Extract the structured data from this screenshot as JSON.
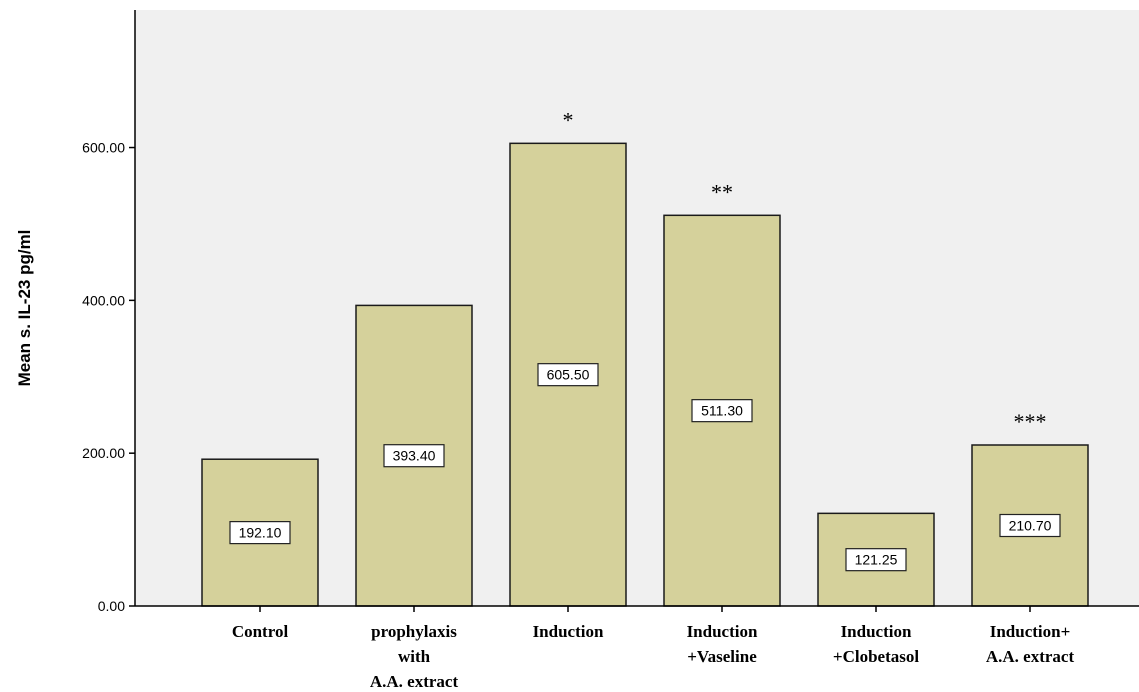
{
  "chart_data": {
    "type": "bar",
    "categories": [
      [
        "Control"
      ],
      [
        "prophylaxis",
        "with",
        "A.A. extract"
      ],
      [
        "Induction"
      ],
      [
        "Induction",
        "+Vaseline"
      ],
      [
        "Induction",
        "+Clobetasol"
      ],
      [
        "Induction+",
        "A.A. extract"
      ]
    ],
    "values": [
      192.1,
      393.4,
      605.5,
      511.3,
      121.25,
      210.7
    ],
    "data_labels": [
      "192.10",
      "393.40",
      "605.50",
      "511.30",
      "121.25",
      "210.70"
    ],
    "significance": [
      "",
      "",
      "*",
      "**",
      "",
      "***"
    ],
    "ylabel": "Mean s. IL-23 pg/ml",
    "xlabel": "",
    "ylim": [
      0,
      780
    ],
    "yticks": [
      0,
      200,
      400,
      600
    ],
    "ytick_labels": [
      "0.00",
      "200.00",
      "400.00",
      "600.00"
    ],
    "colors": {
      "bar_fill": "#d5d19b",
      "bar_stroke": "#1a1a1a",
      "plot_bg": "#f0f0f0",
      "axis": "#000000"
    },
    "grid": false
  }
}
